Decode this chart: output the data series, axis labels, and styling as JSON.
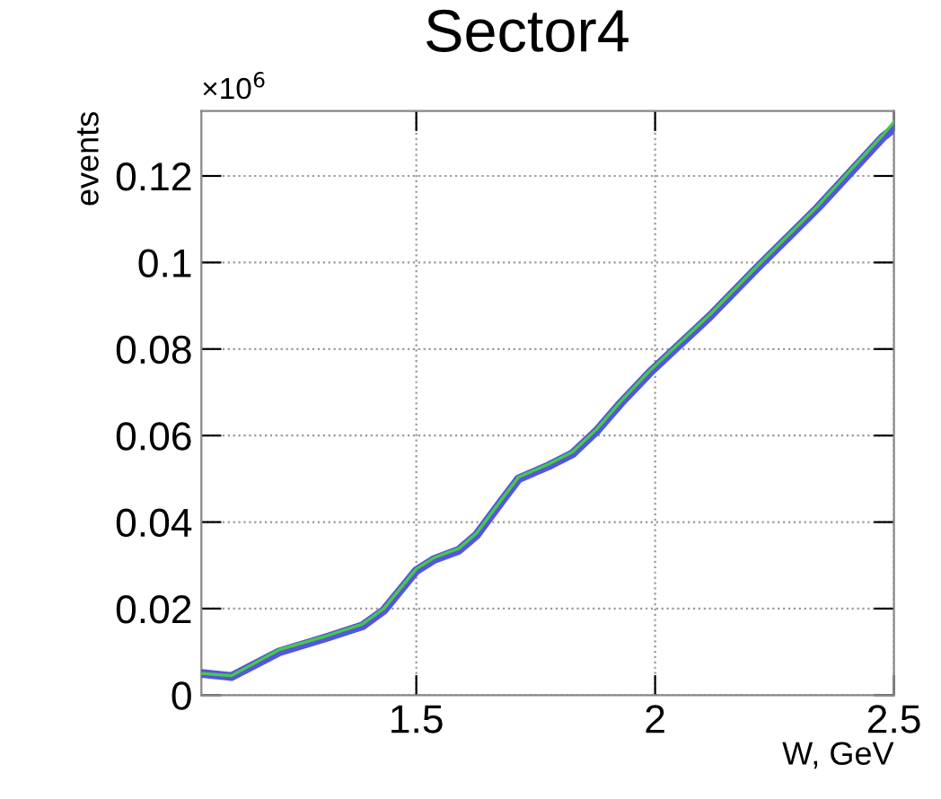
{
  "chart_data": {
    "type": "line",
    "title": "Sector4",
    "ylabel": "events",
    "xlabel": "W, GeV",
    "annotations": [
      "×10$^{6}$"
    ],
    "xlim": [
      1.05,
      2.5
    ],
    "xticks": [
      1.5,
      2,
      2.5
    ],
    "ylim": [
      0,
      0.135
    ],
    "yticks": [
      0,
      0.02,
      0.04,
      0.06,
      0.08,
      0.1,
      0.12
    ],
    "grid": true,
    "line_style": "solid",
    "series": [
      {
        "color": "#44cc44",
        "x": [
          1.05,
          1.113,
          1.213,
          1.312,
          1.387,
          1.432,
          1.5,
          1.538,
          1.589,
          1.626,
          1.677,
          1.714,
          1.777,
          1.827,
          1.877,
          1.928,
          1.989,
          2.115,
          2.214,
          2.34,
          2.477,
          2.5
        ],
        "values": [
          0.005,
          0.0045,
          0.0105,
          0.0137,
          0.0164,
          0.02,
          0.0292,
          0.0318,
          0.0339,
          0.0374,
          0.045,
          0.0504,
          0.0534,
          0.0562,
          0.0614,
          0.0679,
          0.075,
          0.088,
          0.0992,
          0.113,
          0.1295,
          0.1325
        ]
      },
      {
        "color": "#5555dd",
        "x": [
          1.05,
          1.113,
          1.213,
          1.312,
          1.387,
          1.432,
          1.5,
          1.538,
          1.589,
          1.626,
          1.677,
          1.714,
          1.777,
          1.827,
          1.877,
          1.928,
          1.989,
          2.115,
          2.214,
          2.34,
          2.477,
          2.5
        ],
        "values": [
          0.005,
          0.0043,
          0.01,
          0.0133,
          0.016,
          0.0196,
          0.0288,
          0.0314,
          0.0335,
          0.037,
          0.0446,
          0.05,
          0.053,
          0.0558,
          0.061,
          0.0675,
          0.0746,
          0.0876,
          0.0988,
          0.1126,
          0.129,
          0.131
        ]
      }
    ]
  }
}
